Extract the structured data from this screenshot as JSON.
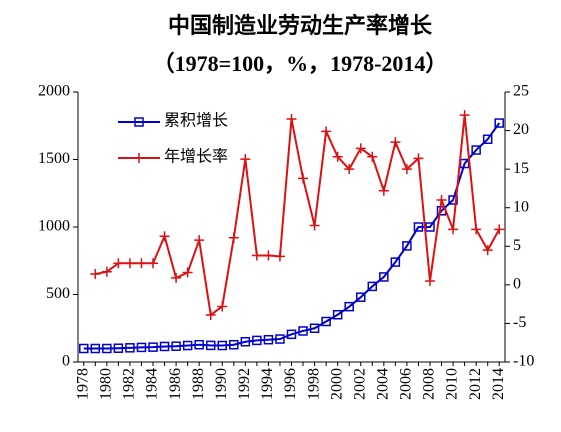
{
  "chart_data": {
    "type": "line",
    "title": "中国制造业劳动生产率增长",
    "subtitle": "（1978=100，%，1978-2014）",
    "categories": [
      1978,
      null,
      1980,
      null,
      1982,
      null,
      1984,
      null,
      1986,
      null,
      1988,
      null,
      1990,
      null,
      1992,
      null,
      1994,
      null,
      1996,
      null,
      1998,
      null,
      2000,
      null,
      2002,
      null,
      2004,
      null,
      2006,
      null,
      2008,
      null,
      2010,
      null,
      2012,
      null,
      2014
    ],
    "series": [
      {
        "name": "累积增长",
        "color": "#0000cc",
        "axis": "y",
        "values": [
          100,
          100,
          100,
          102,
          105,
          108,
          110,
          115,
          117,
          122,
          128,
          123,
          122,
          128,
          150,
          160,
          165,
          170,
          205,
          230,
          250,
          300,
          350,
          410,
          480,
          560,
          630,
          740,
          860,
          1000,
          1000,
          1120,
          1200,
          1470,
          1570,
          1650,
          1770
        ]
      },
      {
        "name": "年增长率",
        "color": "#dd1111",
        "axis": "y2",
        "values": [
          null,
          1.4,
          1.7,
          2.8,
          2.8,
          2.8,
          2.8,
          6.3,
          0.9,
          1.6,
          5.8,
          -3.9,
          -2.8,
          6.1,
          16.3,
          3.8,
          3.8,
          3.7,
          21.5,
          13.8,
          7.7,
          19.9,
          16.6,
          15,
          17.7,
          16.6,
          12.2,
          18.5,
          15,
          16.4,
          0.5,
          11,
          7.2,
          22,
          7.2,
          4.5,
          7.2
        ]
      }
    ],
    "ylim": [
      0,
      2000
    ],
    "yticks": [
      0,
      500,
      1000,
      1500,
      2000
    ],
    "y2lim": [
      -10,
      25
    ],
    "y2ticks": [
      -10,
      -5,
      0,
      5,
      10,
      15,
      20,
      25
    ],
    "grid": false,
    "legend": "upper left"
  }
}
